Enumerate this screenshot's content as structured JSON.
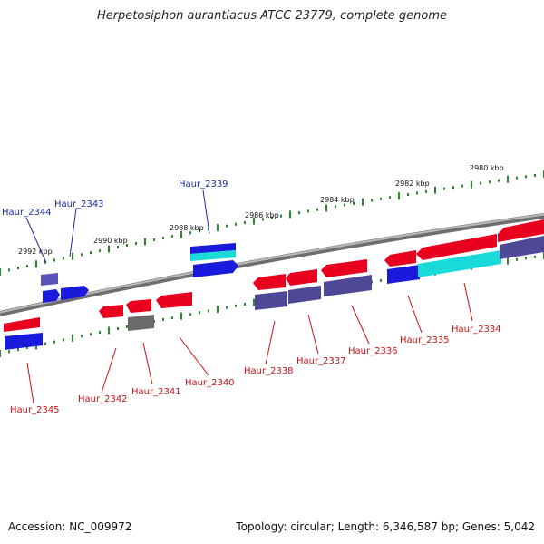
{
  "title": "Herpetosiphon aurantiacus ATCC 23779, complete genome",
  "footer": {
    "accession": "Accession: NC_009972",
    "summary": "Topology: circular; Length: 6,346,587 bp; Genes: 5,042"
  },
  "colors": {
    "backbone": "#8a8a8a",
    "ticks": "#2a8a2a",
    "forward_label": "#1b2aa8",
    "reverse_label": "#c81414",
    "red_gene": "#e8001e",
    "blue_gene": "#1a1adc",
    "purple_gene": "#4e4896",
    "cyan_gene": "#19d9d9",
    "gray_gene": "#6a6a6a"
  },
  "kbp_labels": [
    "2980 kbp",
    "2982 kbp",
    "2984 kbp",
    "2986 kbp",
    "2988 kbp",
    "2990 kbp",
    "2992 kbp"
  ],
  "forward_genes": [
    {
      "label": "Haur_2344"
    },
    {
      "label": "Haur_2343"
    },
    {
      "label": "Haur_2339"
    }
  ],
  "reverse_genes": [
    {
      "label": "Haur_2345"
    },
    {
      "label": "Haur_2342"
    },
    {
      "label": "Haur_2341"
    },
    {
      "label": "Haur_2340"
    },
    {
      "label": "Haur_2338"
    },
    {
      "label": "Haur_2337"
    },
    {
      "label": "Haur_2336"
    },
    {
      "label": "Haur_2335"
    },
    {
      "label": "Haur_2334"
    }
  ]
}
